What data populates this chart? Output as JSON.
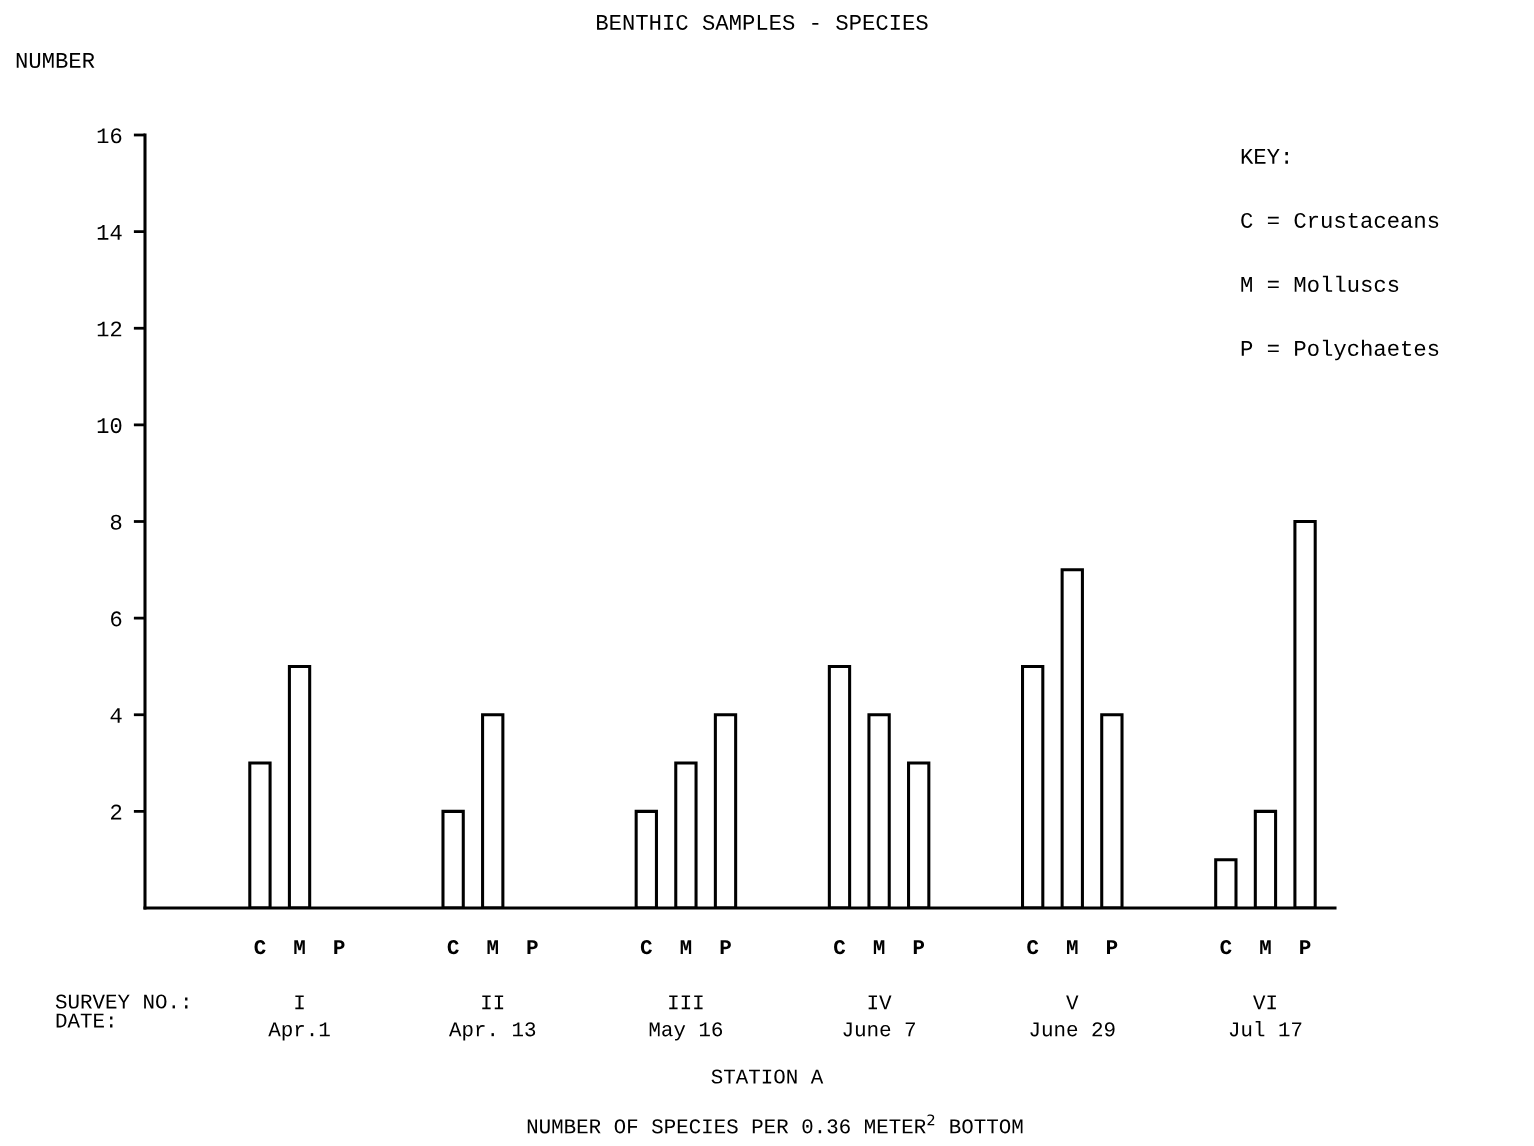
{
  "chart_data": {
    "type": "bar",
    "title": "BENTHIC SAMPLES - SPECIES",
    "ylabel": "NUMBER",
    "xlabel": "STATION A",
    "categories": [
      "I\nApr.1",
      "II\nApr. 13",
      "III\nMay 16",
      "IV\nJune 7",
      "V\nJune 29",
      "VI\nJul 17"
    ],
    "series": [
      {
        "name": "C",
        "color": "#ffffff",
        "values": [
          3,
          2,
          2,
          5,
          5,
          1
        ]
      },
      {
        "name": "M",
        "color": "#ffffff",
        "values": [
          5,
          4,
          3,
          4,
          7,
          2
        ]
      },
      {
        "name": "P",
        "color": "#ffffff",
        "values": [
          null,
          null,
          4,
          3,
          4,
          8
        ]
      }
    ],
    "ylim": [
      0,
      16
    ],
    "yticks": [
      2,
      4,
      6,
      8,
      10,
      12,
      14,
      16
    ],
    "grid": false,
    "legend": false,
    "annotations": [
      "SURVEY NO.:",
      "DATE:",
      "KEY:",
      "C = Crustaceans",
      "M = Molluscs",
      "P = Polychaetes",
      "NUMBER OF SPECIES PER 0.36 METER$^{2}$ BOTTOM"
    ]
  }
}
